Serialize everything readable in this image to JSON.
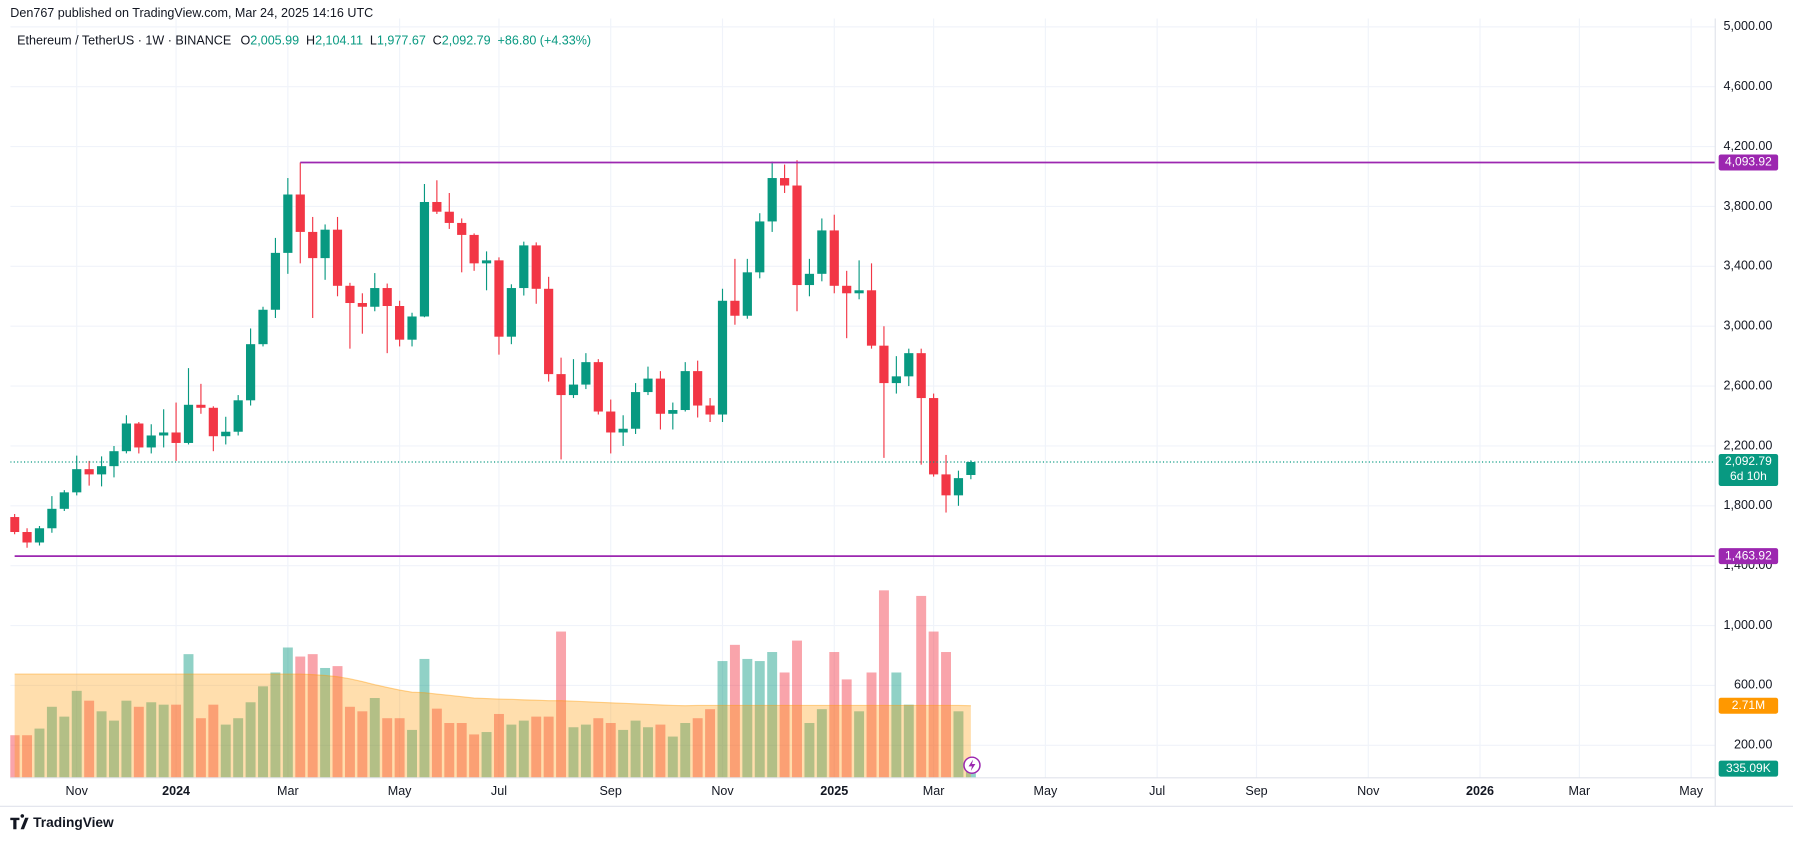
{
  "header": {
    "published": "Den767 published on TradingView.com, Mar 24, 2025 14:16 UTC",
    "brand": "TradingView"
  },
  "legend": {
    "symbol": "Ethereum / TetherUS · 1W · BINANCE",
    "items": [
      {
        "key": "O",
        "value": "2,005.99"
      },
      {
        "key": "H",
        "value": "2,104.11"
      },
      {
        "key": "L",
        "value": "1,977.67"
      },
      {
        "key": "C",
        "value": "2,092.79"
      }
    ],
    "change": "+86.80 (+4.33%)"
  },
  "chart_data": {
    "type": "candlestick",
    "color_up": "#089981",
    "color_down": "#f23645",
    "grid": true,
    "open": [
      1725,
      1625,
      1555,
      1650,
      1780,
      1890,
      2045,
      2010,
      2065,
      2165,
      2350,
      2190,
      2270,
      2290,
      2220,
      2475,
      2455,
      2265,
      2295,
      2505,
      2880,
      3110,
      3490,
      3880,
      3630,
      3455,
      3645,
      3270,
      3155,
      3130,
      3255,
      3135,
      2910,
      3065,
      3830,
      3765,
      3690,
      3610,
      3420,
      3440,
      2930,
      3255,
      3540,
      3250,
      2680,
      2540,
      2610,
      2760,
      2430,
      2290,
      2315,
      2560,
      2650,
      2415,
      2440,
      2700,
      2470,
      2410,
      3170,
      3070,
      3360,
      3700,
      3990,
      3940,
      3275,
      3350,
      3640,
      3270,
      3220,
      3240,
      2870,
      2620,
      2665,
      2820,
      2520,
      2010,
      1870,
      2005.99
    ],
    "high": [
      1745,
      1650,
      1665,
      1865,
      1905,
      2135,
      2100,
      2130,
      2200,
      2405,
      2360,
      2345,
      2445,
      2490,
      2720,
      2615,
      2465,
      2395,
      2540,
      2985,
      3130,
      3590,
      3990,
      4093.92,
      3730,
      3680,
      3730,
      3290,
      3220,
      3355,
      3285,
      3170,
      3090,
      3950,
      3975,
      3890,
      3720,
      3620,
      3500,
      3460,
      3280,
      3565,
      3560,
      3330,
      2790,
      2780,
      2820,
      2780,
      2510,
      2405,
      2620,
      2730,
      2700,
      2490,
      2760,
      2770,
      2520,
      3250,
      3450,
      3450,
      3755,
      4100,
      4080,
      4109,
      3450,
      3720,
      3745,
      3370,
      3440,
      3420,
      3000,
      2800,
      2850,
      2850,
      2550,
      2140,
      2035,
      2104.11
    ],
    "low": [
      1610,
      1520,
      1535,
      1620,
      1765,
      1870,
      1935,
      1930,
      1990,
      2150,
      2150,
      2150,
      2190,
      2100,
      2210,
      2415,
      2165,
      2210,
      2270,
      2470,
      2865,
      3055,
      3350,
      3420,
      3055,
      3310,
      3200,
      2850,
      2950,
      3100,
      2820,
      2865,
      2865,
      3060,
      3750,
      3650,
      3360,
      3370,
      3240,
      2810,
      2880,
      3205,
      3150,
      2630,
      2110,
      2520,
      2580,
      2410,
      2150,
      2200,
      2280,
      2540,
      2310,
      2310,
      2430,
      2390,
      2360,
      2360,
      3010,
      3050,
      3320,
      3630,
      3890,
      3100,
      3200,
      3300,
      3220,
      2920,
      3180,
      2850,
      2120,
      2550,
      2600,
      2075,
      1995,
      1755,
      1800,
      1977.67
    ],
    "close": [
      1625,
      1555,
      1650,
      1780,
      1890,
      2045,
      2010,
      2065,
      2165,
      2350,
      2190,
      2270,
      2290,
      2220,
      2475,
      2455,
      2265,
      2295,
      2505,
      2880,
      3110,
      3490,
      3880,
      3630,
      3455,
      3645,
      3270,
      3155,
      3130,
      3255,
      3135,
      2910,
      3065,
      3830,
      3765,
      3690,
      3610,
      3420,
      3440,
      2930,
      3255,
      3540,
      3250,
      2680,
      2540,
      2610,
      2760,
      2430,
      2290,
      2315,
      2560,
      2650,
      2415,
      2440,
      2700,
      2470,
      2410,
      3170,
      3070,
      3360,
      3700,
      3990,
      3940,
      3275,
      3350,
      3640,
      3270,
      3220,
      3240,
      2870,
      2620,
      2665,
      2820,
      2520,
      2010,
      1870,
      1985,
      2092.79
    ],
    "last_price_label": "2,092.79",
    "countdown": "6d 10h",
    "volume": {
      "axis": "y2",
      "values": [
        1.6,
        1.6,
        1.85,
        2.67,
        2.3,
        3.27,
        2.9,
        2.5,
        2.15,
        2.9,
        2.67,
        2.84,
        2.75,
        2.75,
        4.65,
        2.24,
        2.75,
        2.0,
        2.24,
        2.84,
        3.44,
        3.96,
        4.9,
        4.56,
        4.65,
        4.13,
        4.2,
        2.67,
        2.5,
        3.0,
        2.24,
        2.24,
        1.8,
        4.47,
        2.6,
        2.06,
        2.06,
        1.63,
        1.72,
        2.4,
        2.0,
        2.15,
        2.3,
        2.3,
        5.5,
        1.9,
        2.0,
        2.24,
        2.06,
        1.8,
        2.15,
        1.9,
        2.0,
        1.55,
        2.06,
        2.24,
        2.58,
        4.39,
        5.0,
        4.47,
        4.39,
        4.73,
        3.96,
        5.16,
        2.06,
        2.58,
        4.73,
        3.7,
        2.5,
        3.96,
        7.05,
        3.96,
        2.75,
        6.84,
        5.5,
        4.73,
        2.5,
        0.33509
      ],
      "last_label": "335.09K"
    },
    "volume_ma": {
      "axis": "y2",
      "color": "#ff9800",
      "values": [
        3.9,
        3.9,
        3.9,
        3.9,
        3.9,
        3.9,
        3.9,
        3.9,
        3.9,
        3.9,
        3.9,
        3.9,
        3.9,
        3.9,
        3.9,
        3.9,
        3.9,
        3.9,
        3.9,
        3.9,
        3.9,
        3.9,
        3.9,
        3.9,
        3.88,
        3.85,
        3.8,
        3.72,
        3.62,
        3.5,
        3.4,
        3.3,
        3.22,
        3.2,
        3.15,
        3.1,
        3.05,
        3.0,
        2.98,
        2.96,
        2.95,
        2.93,
        2.92,
        2.9,
        2.9,
        2.88,
        2.86,
        2.84,
        2.82,
        2.8,
        2.78,
        2.76,
        2.74,
        2.72,
        2.71,
        2.72,
        2.72,
        2.72,
        2.72,
        2.72,
        2.72,
        2.72,
        2.72,
        2.72,
        2.72,
        2.72,
        2.72,
        2.72,
        2.72,
        2.72,
        2.72,
        2.72,
        2.72,
        2.72,
        2.72,
        2.72,
        2.72,
        2.71
      ],
      "last_label": "2.71M"
    },
    "hlines": [
      {
        "value": 4093.92,
        "label": "4,093.92",
        "color": "#9c27b0"
      },
      {
        "value": 1463.92,
        "label": "1,463.92",
        "color": "#9c27b0"
      }
    ],
    "ylim": [
      -17,
      5056
    ],
    "y2lim": [
      0,
      28.56
    ],
    "yticks": [
      {
        "value": 200,
        "label": "200.00"
      },
      {
        "value": 600,
        "label": "600.00"
      },
      {
        "value": 1000,
        "label": "1,000.00"
      },
      {
        "value": 1400,
        "label": "1,400.00"
      },
      {
        "value": 1800,
        "label": "1,800.00"
      },
      {
        "value": 2200,
        "label": "2,200.00"
      },
      {
        "value": 2600,
        "label": "2,600.00"
      },
      {
        "value": 3000,
        "label": "3,000.00"
      },
      {
        "value": 3400,
        "label": "3,400.00"
      },
      {
        "value": 3800,
        "label": "3,800.00"
      },
      {
        "value": 4200,
        "label": "4,200.00"
      },
      {
        "value": 4600,
        "label": "4,600.00"
      },
      {
        "value": 5000,
        "label": "5,000.00"
      }
    ],
    "xlim": [
      -0.35,
      136.94
    ],
    "xticks": [
      {
        "value": 5,
        "label": "Nov"
      },
      {
        "value": 13,
        "label": "2024"
      },
      {
        "value": 22,
        "label": "Mar"
      },
      {
        "value": 31,
        "label": "May"
      },
      {
        "value": 39,
        "label": "Jul"
      },
      {
        "value": 48,
        "label": "Sep"
      },
      {
        "value": 57,
        "label": "Nov"
      },
      {
        "value": 66,
        "label": "2025"
      },
      {
        "value": 74,
        "label": "Mar"
      },
      {
        "value": 83,
        "label": "May"
      },
      {
        "value": 92,
        "label": "Jul"
      },
      {
        "value": 100,
        "label": "Sep"
      },
      {
        "value": 109,
        "label": "Nov"
      },
      {
        "value": 118,
        "label": "2026"
      },
      {
        "value": 126,
        "label": "Mar"
      },
      {
        "value": 135,
        "label": "May"
      }
    ]
  }
}
